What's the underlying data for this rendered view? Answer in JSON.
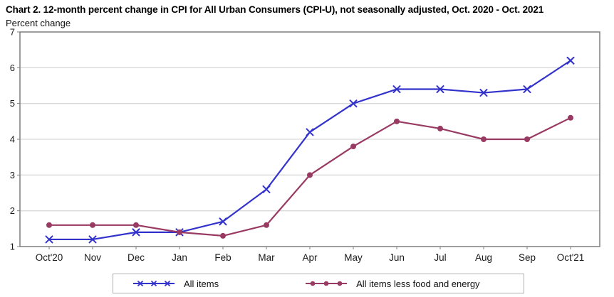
{
  "chart_data": {
    "type": "line",
    "title": "Chart 2. 12-month percent change in CPI for All Urban Consumers (CPI-U), not seasonally adjusted, Oct. 2020 - Oct. 2021",
    "ylabel": "Percent change",
    "xlabel": "",
    "categories": [
      "Oct'20",
      "Nov",
      "Dec",
      "Jan",
      "Feb",
      "Mar",
      "Apr",
      "May",
      "Jun",
      "Jul",
      "Aug",
      "Sep",
      "Oct'21"
    ],
    "series": [
      {
        "name": "All items",
        "marker": "x",
        "color": "#3333cc",
        "values": [
          1.2,
          1.2,
          1.4,
          1.4,
          1.7,
          2.6,
          4.2,
          5.0,
          5.4,
          5.4,
          5.3,
          5.4,
          6.2
        ]
      },
      {
        "name": "All items less food and energy",
        "marker": "circle",
        "color": "#993a62",
        "values": [
          1.6,
          1.6,
          1.6,
          1.4,
          1.3,
          1.6,
          3.0,
          3.8,
          4.5,
          4.3,
          4.0,
          4.0,
          4.6
        ]
      }
    ],
    "ylim": [
      1,
      7
    ],
    "yticks": [
      1,
      2,
      3,
      4,
      5,
      6,
      7
    ],
    "grid": true,
    "legend_position": "bottom",
    "colors": {
      "frame": "#7f7f7f",
      "gridline": "#d9d9d9",
      "tick": "#7f7f7f",
      "axis_text": "#1a1a1a",
      "legend_border": "#b0b0b0",
      "background": "#ffffff"
    }
  }
}
